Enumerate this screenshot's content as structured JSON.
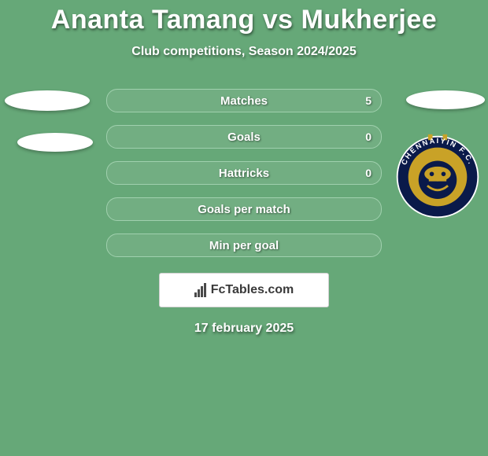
{
  "colors": {
    "page_bg": "#66a878",
    "text": "#ffffff",
    "row_border": "#a0d0ae",
    "row_bg": "rgba(255,255,255,0.08)",
    "footer_box_bg": "#ffffff",
    "footer_text": "#3a3a3a",
    "badge_outer": "#0a1a4a",
    "badge_mid": "#c9a227",
    "badge_inner": "#0a1a4a"
  },
  "title": "Ananta Tamang vs Mukherjee",
  "subtitle": "Club competitions, Season 2024/2025",
  "rows": [
    {
      "label": "Matches",
      "left": "",
      "right": "5"
    },
    {
      "label": "Goals",
      "left": "",
      "right": "0"
    },
    {
      "label": "Hattricks",
      "left": "",
      "right": "0"
    },
    {
      "label": "Goals per match",
      "left": "",
      "right": ""
    },
    {
      "label": "Min per goal",
      "left": "",
      "right": ""
    }
  ],
  "right_team": "CHENNAIYIN F.C.",
  "footer_brand": "FcTables.com",
  "footer_date": "17 february 2025"
}
